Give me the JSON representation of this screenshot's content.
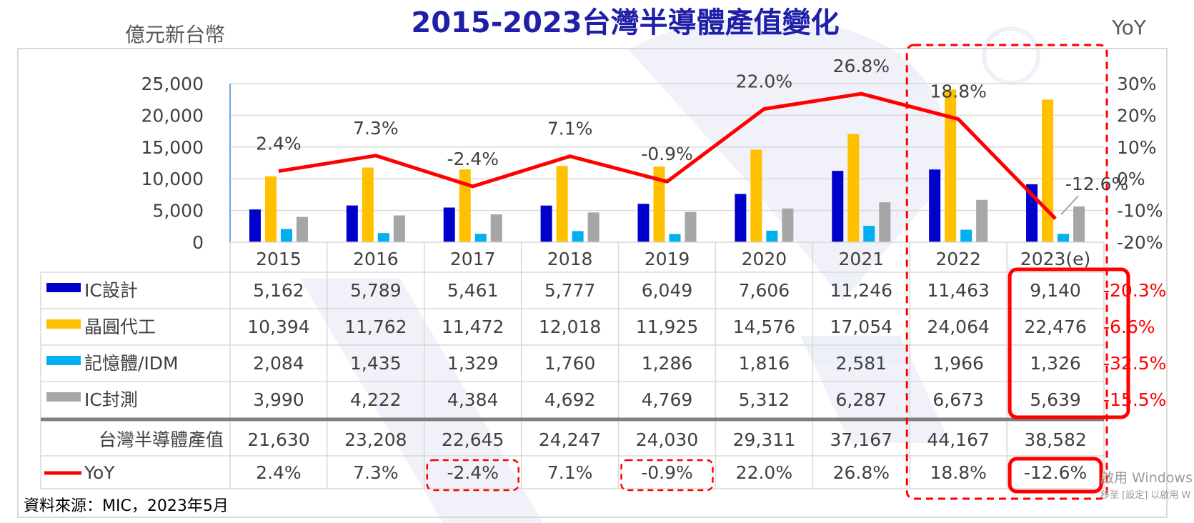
{
  "chart_data": {
    "type": "bar",
    "title": "2015-2023台灣半導體產值變化",
    "ylabel_left": "億元新台幣",
    "ylabel_right": "YoY",
    "left_ticks": [
      "25,000",
      "20,000",
      "15,000",
      "10,000",
      "5,000",
      "0"
    ],
    "ylim_left": [
      0,
      25000
    ],
    "right_ticks": [
      "30%",
      "20%",
      "10%",
      "0%",
      "-10%",
      "-20%"
    ],
    "ylim_right": [
      -20,
      30
    ],
    "categories": [
      "2015",
      "2016",
      "2017",
      "2018",
      "2019",
      "2020",
      "2021",
      "2022",
      "2023(e)"
    ],
    "series": [
      {
        "name": "IC設計",
        "color": "#0000cc",
        "values": [
          5162,
          5789,
          5461,
          5777,
          6049,
          7606,
          11246,
          11463,
          9140
        ],
        "labels": [
          "5,162",
          "5,789",
          "5,461",
          "5,777",
          "6,049",
          "7,606",
          "11,246",
          "11,463",
          "9,140"
        ]
      },
      {
        "name": "晶圓代工",
        "color": "#ffc000",
        "values": [
          10394,
          11762,
          11472,
          12018,
          11925,
          14576,
          17054,
          24064,
          22476
        ],
        "labels": [
          "10,394",
          "11,762",
          "11,472",
          "12,018",
          "11,925",
          "14,576",
          "17,054",
          "24,064",
          "22,476"
        ]
      },
      {
        "name": "記憶體/IDM",
        "color": "#00b0f0",
        "values": [
          2084,
          1435,
          1329,
          1760,
          1286,
          1816,
          2581,
          1966,
          1326
        ],
        "labels": [
          "2,084",
          "1,435",
          "1,329",
          "1,760",
          "1,286",
          "1,816",
          "2,581",
          "1,966",
          "1,326"
        ]
      },
      {
        "name": "IC封測",
        "color": "#a6a6a6",
        "values": [
          3990,
          4222,
          4384,
          4692,
          4769,
          5312,
          6287,
          6673,
          5639
        ],
        "labels": [
          "3,990",
          "4,222",
          "4,384",
          "4,692",
          "4,769",
          "5,312",
          "6,287",
          "6,673",
          "5,639"
        ]
      }
    ],
    "total": {
      "name": "台灣半導體產值",
      "labels": [
        "21,630",
        "23,208",
        "22,645",
        "24,247",
        "24,030",
        "29,311",
        "37,167",
        "44,167",
        "38,582"
      ]
    },
    "yoy": {
      "name": "YoY",
      "color": "#ff0000",
      "values": [
        2.4,
        7.3,
        -2.4,
        7.1,
        -0.9,
        22.0,
        26.8,
        18.8,
        -12.6
      ],
      "labels": [
        "2.4%",
        "7.3%",
        "-2.4%",
        "7.1%",
        "-0.9%",
        "22.0%",
        "26.8%",
        "18.8%",
        "-12.6%"
      ]
    },
    "yoy_2023_by_segment": [
      "-20.3%",
      "-6.6%",
      "-32.5%",
      "-15.5%"
    ],
    "source": "資料來源：MIC，2023年5月"
  },
  "watermark": {
    "line1": "啟用 Windows",
    "line2": "移至 [設定] 以啟用 W"
  }
}
